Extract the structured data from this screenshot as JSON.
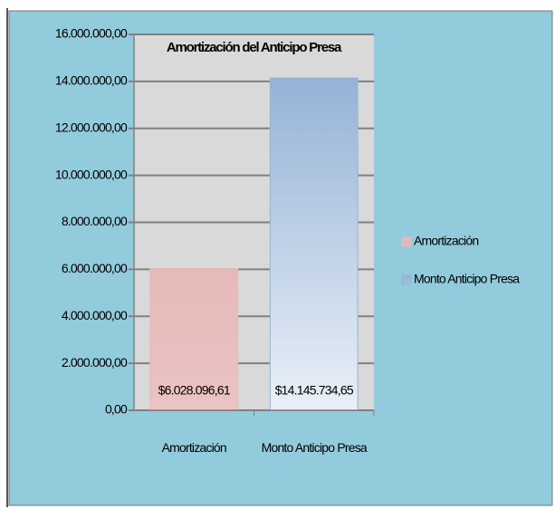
{
  "chart_data": {
    "type": "bar",
    "title": "Amortización del Anticipo Presa",
    "categories": [
      "Amortización",
      "Monto Anticipo Presa"
    ],
    "series": [
      {
        "name": "Amortización",
        "color": "#e6b9b8",
        "values": [
          6028096.61,
          null
        ],
        "value_labels": [
          "$6.028.096,61",
          null
        ]
      },
      {
        "name": "Monto Anticipo Presa",
        "color": "#95b3d7",
        "values": [
          null,
          14145734.65
        ],
        "value_labels": [
          null,
          "$14.145.734,65"
        ]
      }
    ],
    "ylim": [
      0,
      16000000
    ],
    "yticks": [
      {
        "value": 0,
        "label": "0,00"
      },
      {
        "value": 2000000,
        "label": "2.000.000,00"
      },
      {
        "value": 4000000,
        "label": "4.000.000,00"
      },
      {
        "value": 6000000,
        "label": "6.000.000,00"
      },
      {
        "value": 8000000,
        "label": "8.000.000,00"
      },
      {
        "value": 10000000,
        "label": "10.000.000,00"
      },
      {
        "value": 12000000,
        "label": "12.000.000,00"
      },
      {
        "value": 14000000,
        "label": "14.000.000,00"
      },
      {
        "value": 16000000,
        "label": "16.000.000,00"
      }
    ],
    "grid": true,
    "legend": "right"
  }
}
